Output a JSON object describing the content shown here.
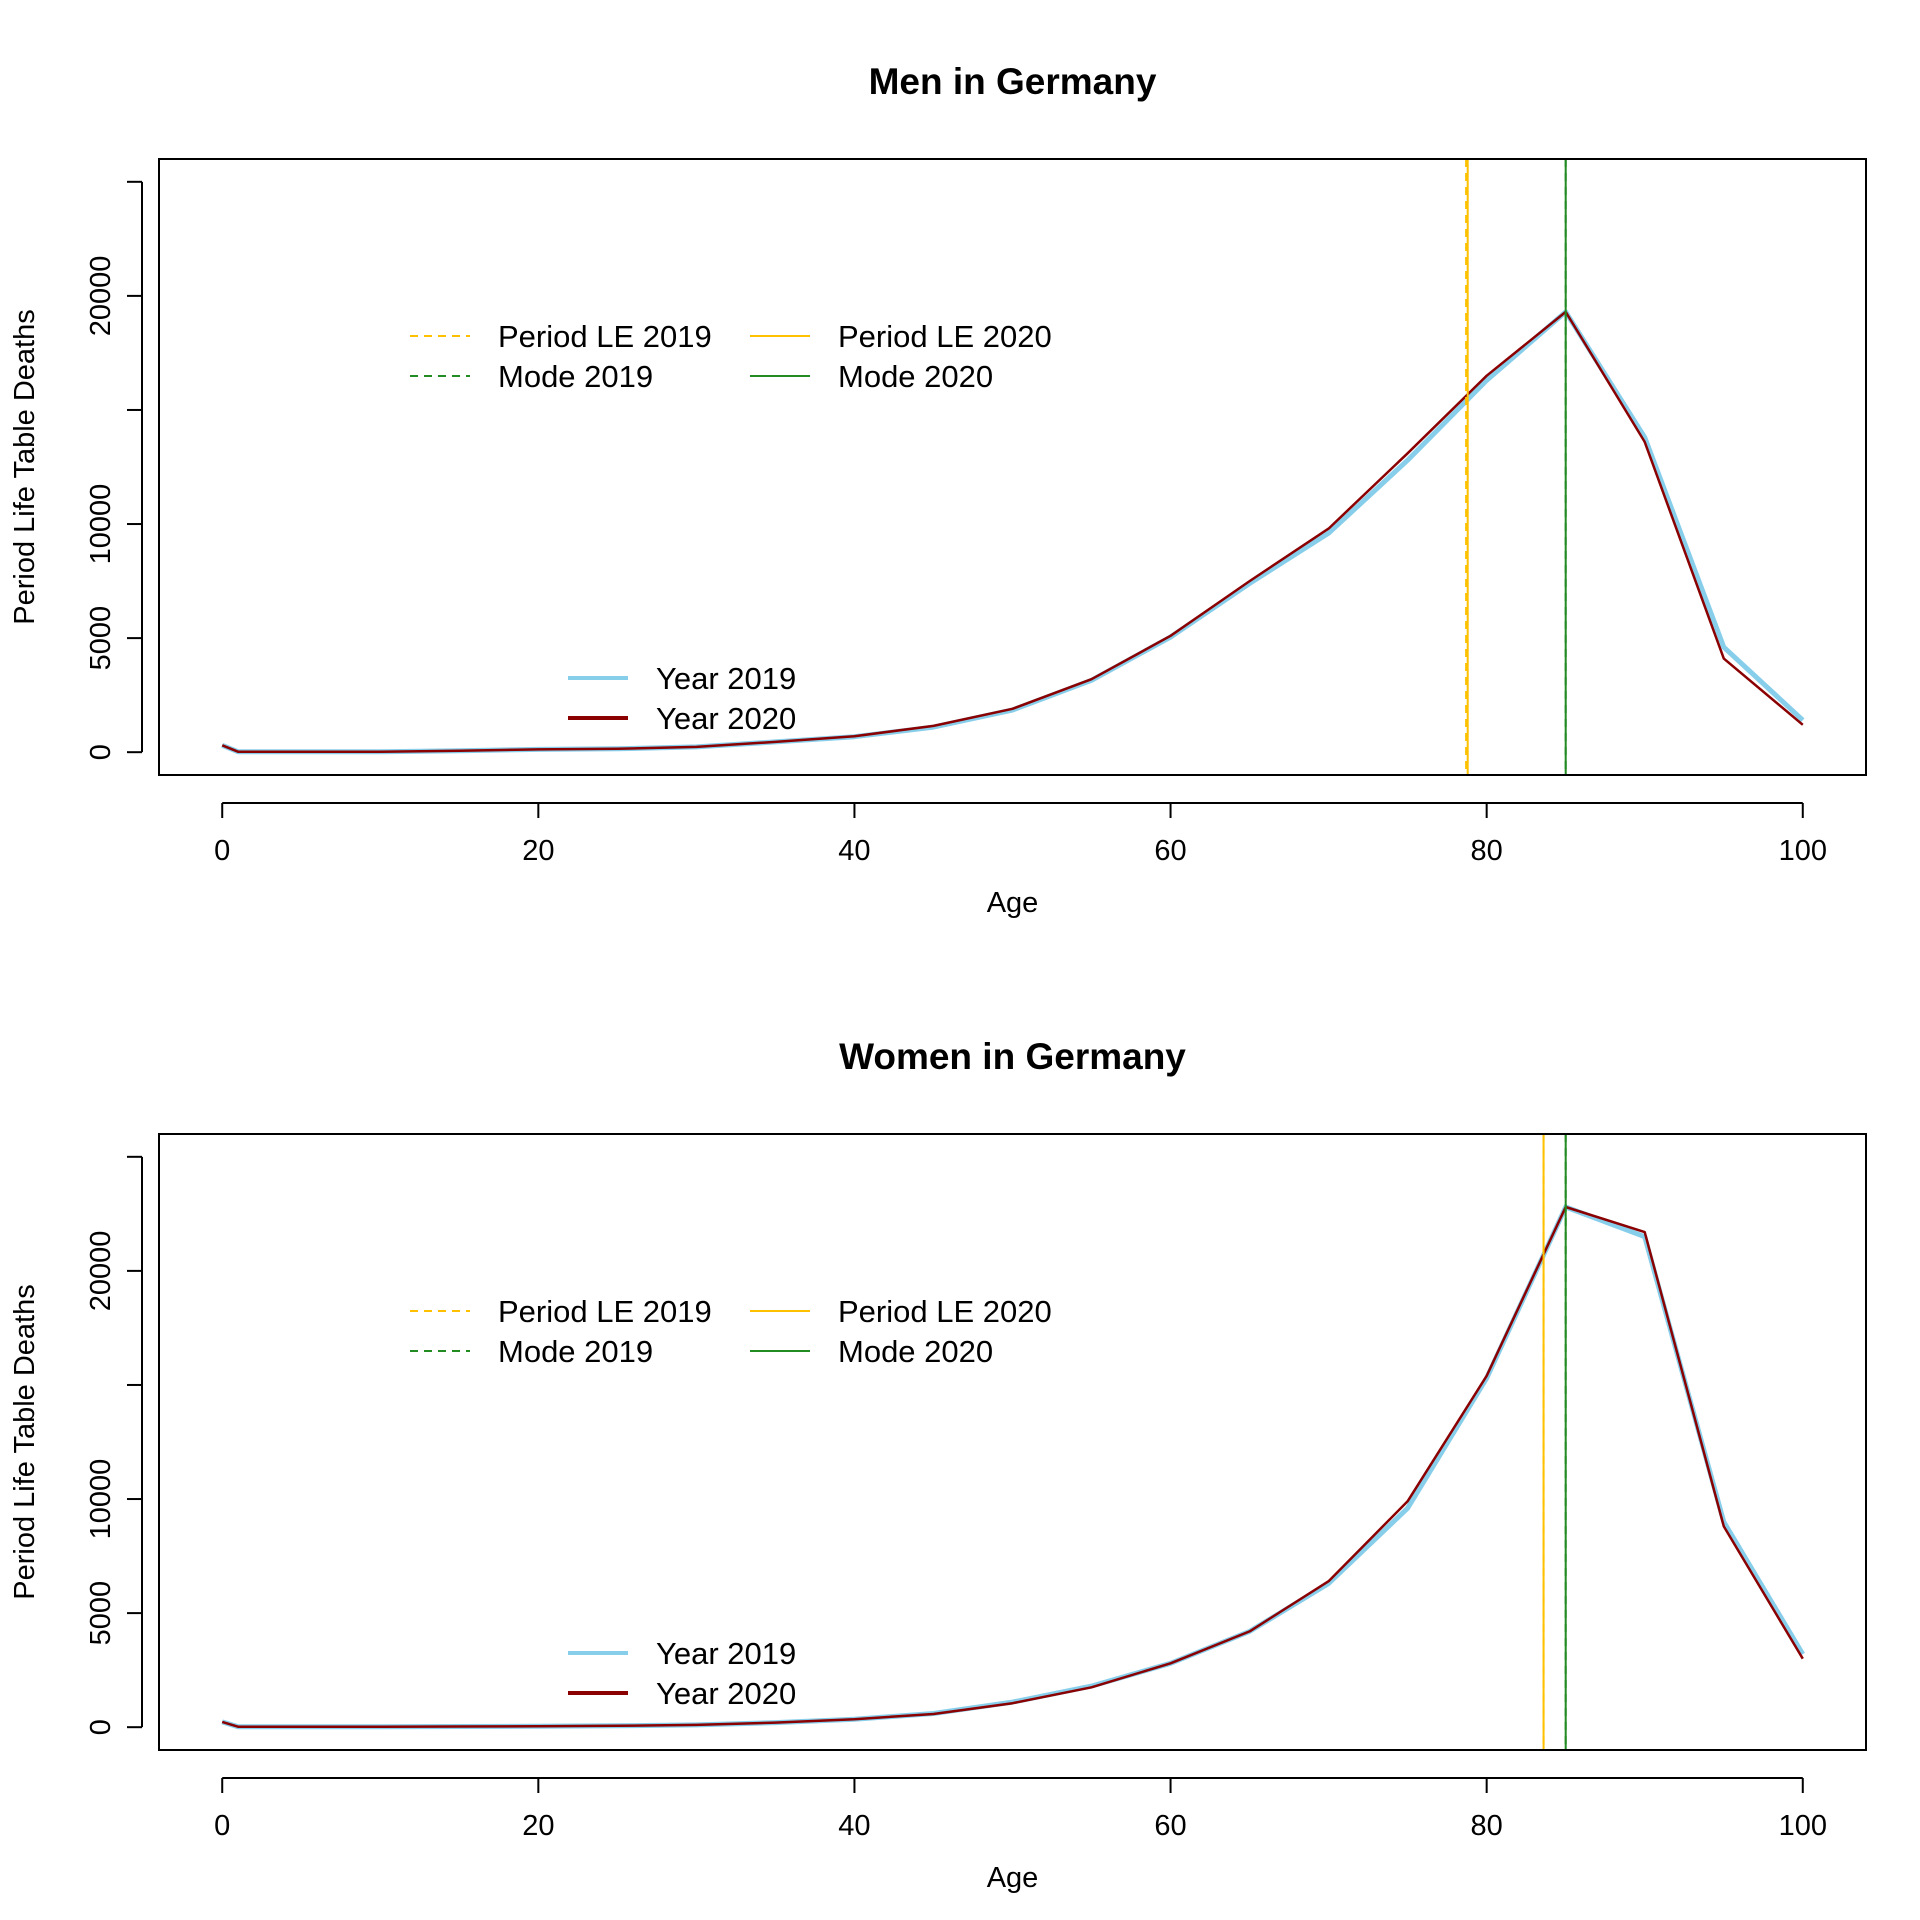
{
  "colors": {
    "year_2019": "#87CEEB",
    "year_2020": "#8B0000",
    "period_le": "#FFC000",
    "mode": "#228B22"
  },
  "chart_data": [
    {
      "type": "line",
      "title": "Men in Germany",
      "xlabel": "Age",
      "ylabel": "Period Life Table Deaths",
      "xlim": [
        -4,
        104
      ],
      "ylim": [
        -1000,
        26000
      ],
      "xticks": [
        0,
        20,
        40,
        60,
        80,
        100
      ],
      "yticks": [
        0,
        5000,
        10000,
        15000,
        20000,
        25000
      ],
      "ytick_labels": [
        "0",
        "5000",
        "10000",
        "",
        "20000",
        ""
      ],
      "grid": false,
      "x": [
        0,
        1,
        5,
        10,
        15,
        20,
        25,
        30,
        35,
        40,
        45,
        50,
        55,
        60,
        65,
        70,
        75,
        80,
        85,
        90,
        95,
        100
      ],
      "series": [
        {
          "name": "Year 2019",
          "color": "#87CEEB",
          "values": [
            300,
            20,
            20,
            20,
            60,
            120,
            150,
            230,
            450,
            680,
            1100,
            1850,
            3150,
            5050,
            7400,
            9600,
            12800,
            16300,
            19300,
            13800,
            4600,
            1400
          ]
        },
        {
          "name": "Year 2020",
          "color": "#8B0000",
          "values": [
            300,
            20,
            20,
            20,
            60,
            120,
            150,
            230,
            450,
            700,
            1150,
            1900,
            3200,
            5100,
            7500,
            9800,
            13100,
            16500,
            19300,
            13600,
            4100,
            1200
          ]
        }
      ],
      "vlines": [
        {
          "name": "Period LE 2019",
          "x": 78.7,
          "style": "dashed",
          "color": "#FFC000"
        },
        {
          "name": "Period LE 2020",
          "x": 78.8,
          "style": "solid",
          "color": "#FFC000"
        },
        {
          "name": "Mode 2019",
          "x": 85,
          "style": "dashed",
          "color": "#228B22"
        },
        {
          "name": "Mode 2020",
          "x": 85,
          "style": "solid",
          "color": "#228B22"
        }
      ],
      "legend_lines": [
        {
          "label": "Period LE 2019",
          "style": "dashed",
          "color": "#FFC000"
        },
        {
          "label": "Mode 2019",
          "style": "dashed",
          "color": "#228B22"
        },
        {
          "label": "Period LE 2020",
          "style": "solid",
          "color": "#FFC000"
        },
        {
          "label": "Mode 2020",
          "style": "solid",
          "color": "#228B22"
        }
      ],
      "legend_lines_position": "top-left",
      "legend_series": [
        {
          "label": "Year 2019",
          "color": "#87CEEB"
        },
        {
          "label": "Year 2020",
          "color": "#8B0000"
        }
      ],
      "legend_series_position": "bottom-left"
    },
    {
      "type": "line",
      "title": "Women in Germany",
      "xlabel": "Age",
      "ylabel": "Period Life Table Deaths",
      "xlim": [
        -4,
        104
      ],
      "ylim": [
        -1000,
        26000
      ],
      "xticks": [
        0,
        20,
        40,
        60,
        80,
        100
      ],
      "yticks": [
        0,
        5000,
        10000,
        15000,
        20000,
        25000
      ],
      "ytick_labels": [
        "0",
        "5000",
        "10000",
        "",
        "20000",
        ""
      ],
      "grid": false,
      "x": [
        0,
        1,
        5,
        10,
        15,
        20,
        25,
        30,
        35,
        40,
        45,
        50,
        55,
        60,
        65,
        70,
        75,
        80,
        85,
        90,
        95,
        100
      ],
      "series": [
        {
          "name": "Year 2019",
          "color": "#87CEEB",
          "values": [
            230,
            20,
            20,
            20,
            30,
            40,
            60,
            100,
            200,
            350,
            600,
            1100,
            1800,
            2800,
            4200,
            6300,
            9600,
            15300,
            22800,
            21500,
            9000,
            3200
          ]
        },
        {
          "name": "Year 2020",
          "color": "#8B0000",
          "values": [
            230,
            20,
            20,
            20,
            30,
            40,
            60,
            100,
            200,
            350,
            580,
            1050,
            1750,
            2800,
            4200,
            6400,
            9900,
            15400,
            22800,
            21700,
            8800,
            3000
          ]
        }
      ],
      "vlines": [
        {
          "name": "Period LE 2019",
          "x": 83.6,
          "style": "dashed",
          "color": "#FFC000"
        },
        {
          "name": "Period LE 2020",
          "x": 83.6,
          "style": "solid",
          "color": "#FFC000"
        },
        {
          "name": "Mode 2019",
          "x": 85,
          "style": "dashed",
          "color": "#228B22"
        },
        {
          "name": "Mode 2020",
          "x": 85,
          "style": "solid",
          "color": "#228B22"
        }
      ],
      "legend_lines": [
        {
          "label": "Period LE 2019",
          "style": "dashed",
          "color": "#FFC000"
        },
        {
          "label": "Mode 2019",
          "style": "dashed",
          "color": "#228B22"
        },
        {
          "label": "Period LE 2020",
          "style": "solid",
          "color": "#FFC000"
        },
        {
          "label": "Mode 2020",
          "style": "solid",
          "color": "#228B22"
        }
      ],
      "legend_lines_position": "top-left",
      "legend_series": [
        {
          "label": "Year 2019",
          "color": "#87CEEB"
        },
        {
          "label": "Year 2020",
          "color": "#8B0000"
        }
      ],
      "legend_series_position": "bottom-left"
    }
  ]
}
